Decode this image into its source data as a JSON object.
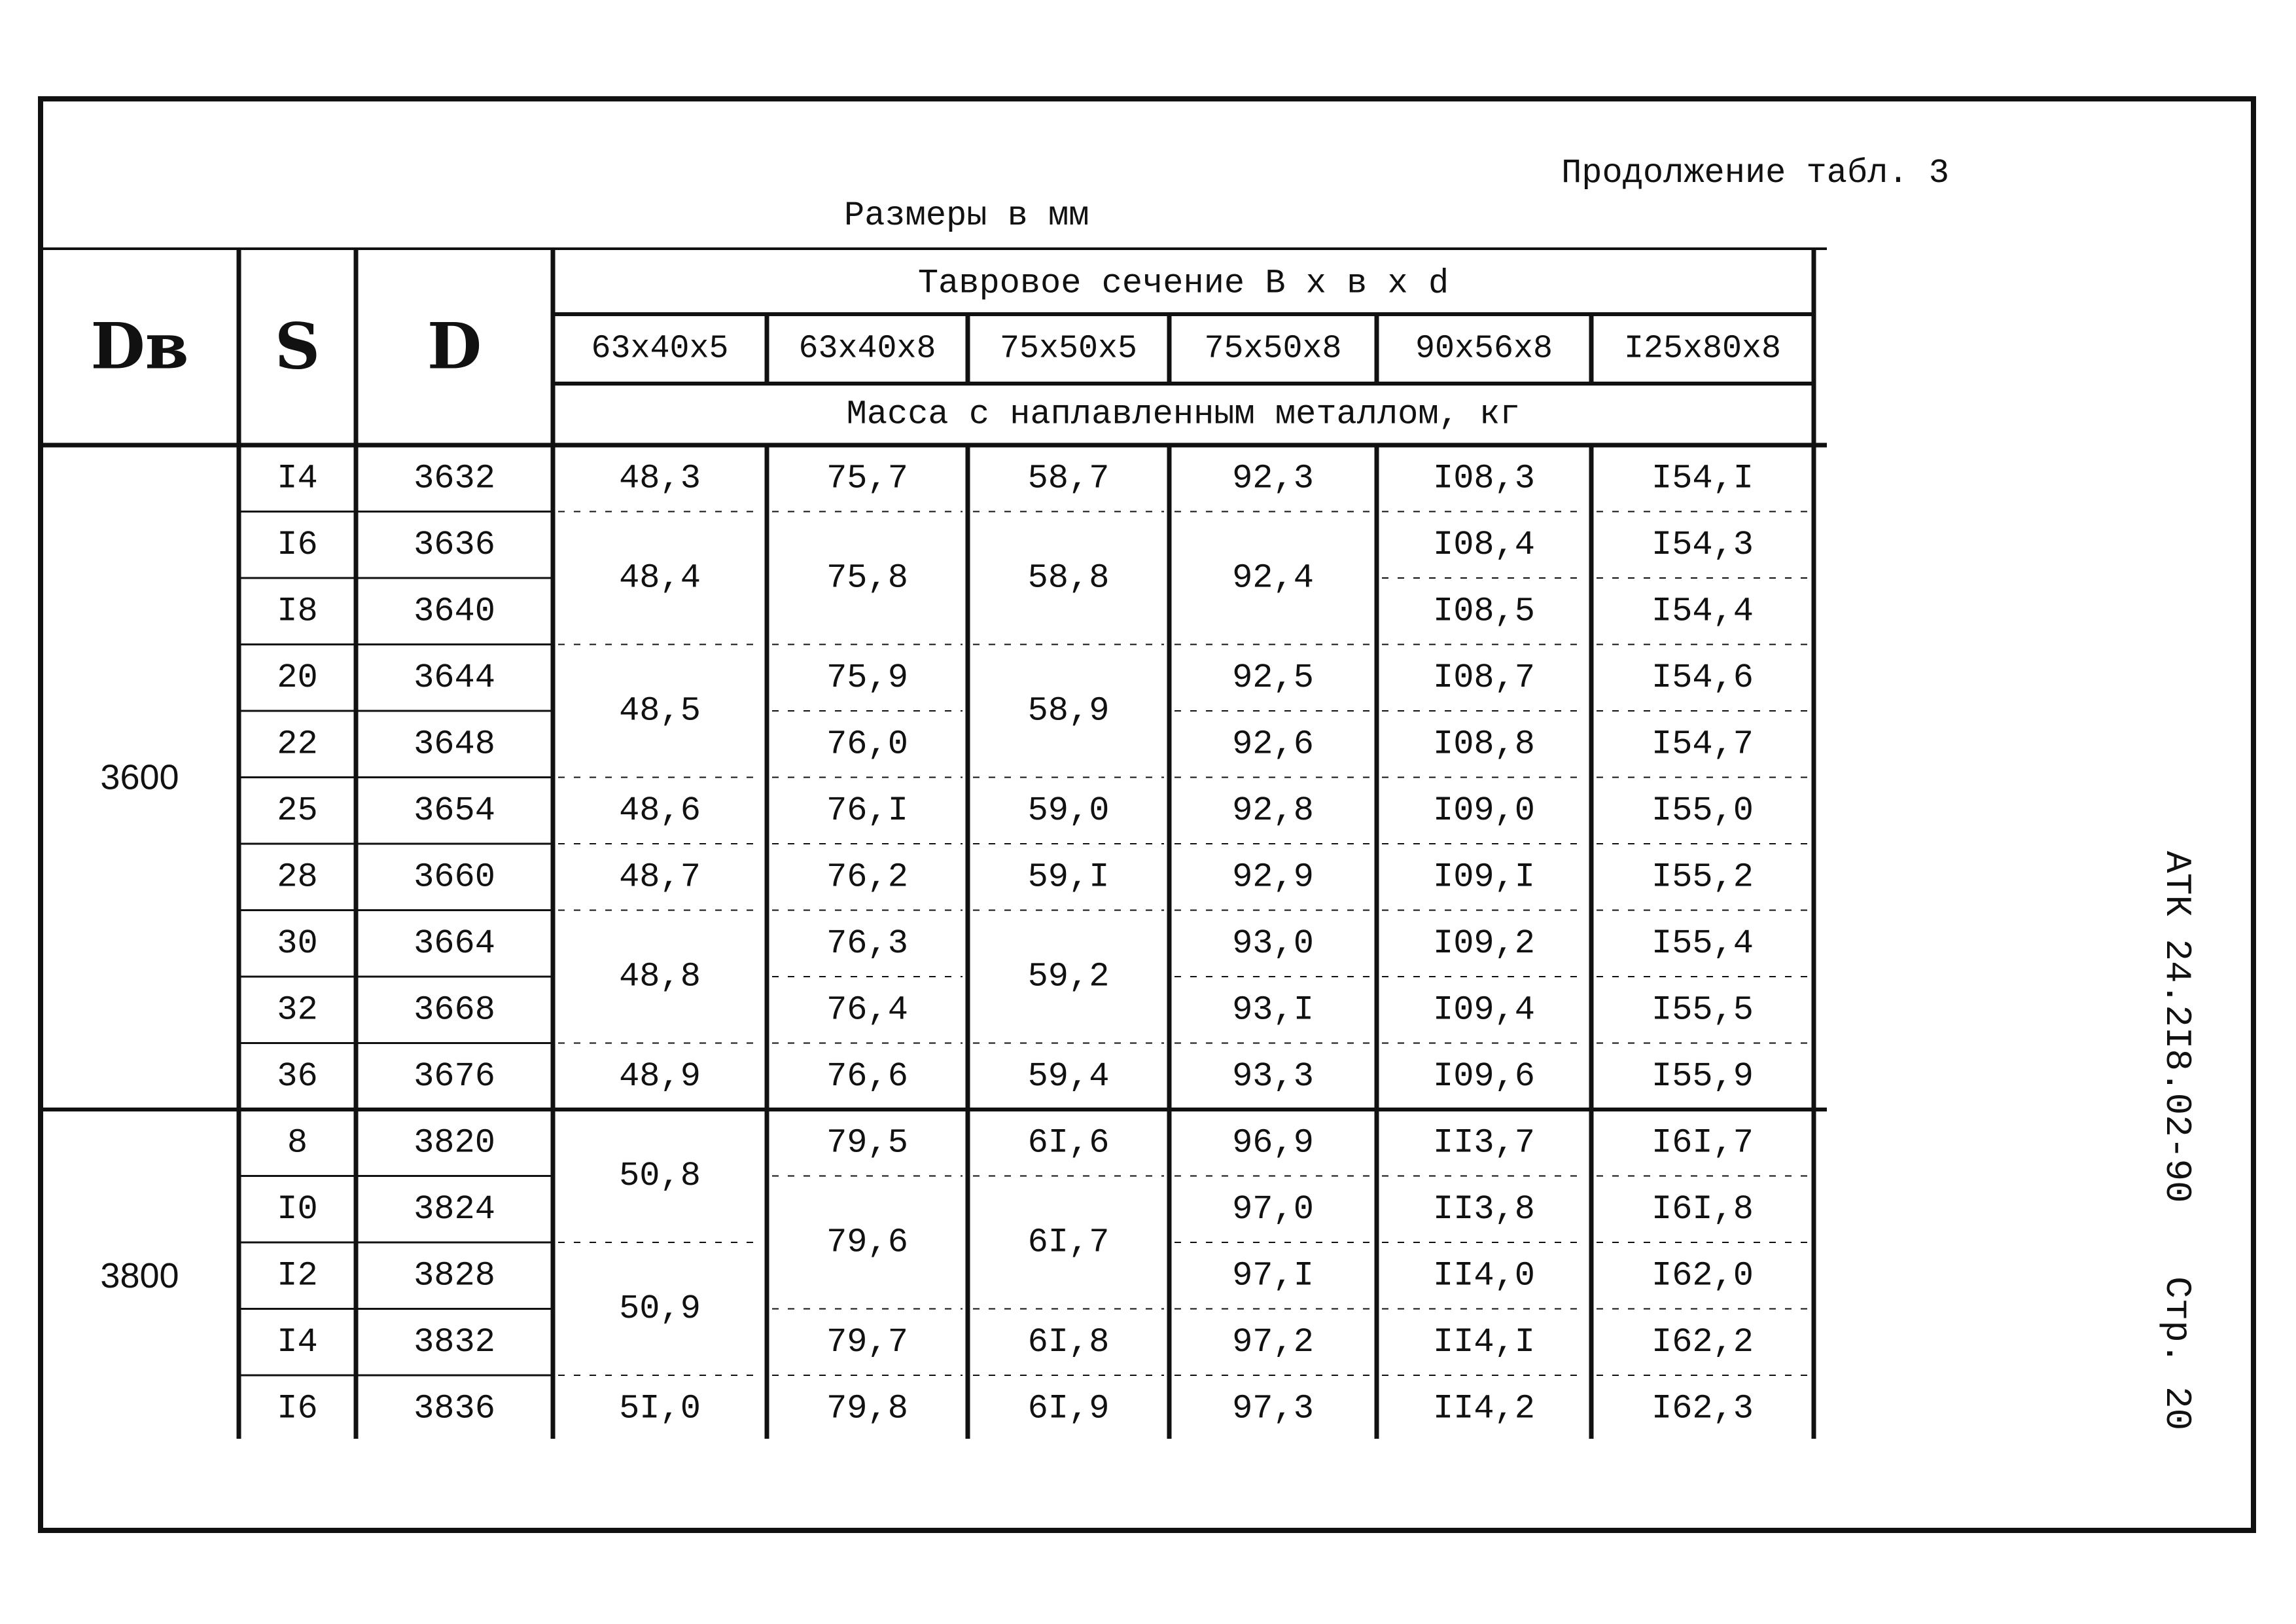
{
  "caption": {
    "continuation": "Продолжение табл. 3",
    "units": "Размеры в мм"
  },
  "side_note": {
    "code": "АТК 24.2I8.02-90",
    "page": "Стр. 20"
  },
  "table": {
    "headers": {
      "db": "Dв",
      "s": "S",
      "d": "D",
      "section_title": "Тавровое сечение  B x в x d",
      "mass_title": "Масса с наплавленным металлом, кг"
    },
    "profiles": [
      "63x40x5",
      "63x40x8",
      "75x50x5",
      "75x50x8",
      "90x56x8",
      "I25x80x8"
    ],
    "groups": [
      {
        "db": "3600",
        "rows": [
          {
            "s": "I4",
            "d": "3632"
          },
          {
            "s": "I6",
            "d": "3636"
          },
          {
            "s": "I8",
            "d": "3640"
          },
          {
            "s": "20",
            "d": "3644"
          },
          {
            "s": "22",
            "d": "3648"
          },
          {
            "s": "25",
            "d": "3654"
          },
          {
            "s": "28",
            "d": "3660"
          },
          {
            "s": "30",
            "d": "3664"
          },
          {
            "s": "32",
            "d": "3668"
          },
          {
            "s": "36",
            "d": "3676"
          }
        ],
        "mass": [
          [
            {
              "v": "48,3",
              "span": 1
            },
            {
              "v": "48,4",
              "span": 2
            },
            {
              "v": "48,5",
              "span": 2
            },
            {
              "v": "48,6",
              "span": 1
            },
            {
              "v": "48,7",
              "span": 1
            },
            {
              "v": "48,8",
              "span": 2
            },
            {
              "v": "48,9",
              "span": 1
            }
          ],
          [
            {
              "v": "75,7",
              "span": 1
            },
            {
              "v": "75,8",
              "span": 2
            },
            {
              "v": "75,9",
              "span": 1
            },
            {
              "v": "76,0",
              "span": 1
            },
            {
              "v": "76,I",
              "span": 1
            },
            {
              "v": "76,2",
              "span": 1
            },
            {
              "v": "76,3",
              "span": 1
            },
            {
              "v": "76,4",
              "span": 1
            },
            {
              "v": "76,6",
              "span": 1
            }
          ],
          [
            {
              "v": "58,7",
              "span": 1
            },
            {
              "v": "58,8",
              "span": 2
            },
            {
              "v": "58,9",
              "span": 2
            },
            {
              "v": "59,0",
              "span": 1
            },
            {
              "v": "59,I",
              "span": 1
            },
            {
              "v": "59,2",
              "span": 2
            },
            {
              "v": "59,4",
              "span": 1
            }
          ],
          [
            {
              "v": "92,3",
              "span": 1
            },
            {
              "v": "92,4",
              "span": 2
            },
            {
              "v": "92,5",
              "span": 1
            },
            {
              "v": "92,6",
              "span": 1
            },
            {
              "v": "92,8",
              "span": 1
            },
            {
              "v": "92,9",
              "span": 1
            },
            {
              "v": "93,0",
              "span": 1
            },
            {
              "v": "93,I",
              "span": 1
            },
            {
              "v": "93,3",
              "span": 1
            }
          ],
          [
            {
              "v": "I08,3",
              "span": 1
            },
            {
              "v": "I08,4",
              "span": 1
            },
            {
              "v": "I08,5",
              "span": 1
            },
            {
              "v": "I08,7",
              "span": 1
            },
            {
              "v": "I08,8",
              "span": 1
            },
            {
              "v": "I09,0",
              "span": 1
            },
            {
              "v": "I09,I",
              "span": 1
            },
            {
              "v": "I09,2",
              "span": 1
            },
            {
              "v": "I09,4",
              "span": 1
            },
            {
              "v": "I09,6",
              "span": 1
            }
          ],
          [
            {
              "v": "I54,I",
              "span": 1
            },
            {
              "v": "I54,3",
              "span": 1
            },
            {
              "v": "I54,4",
              "span": 1
            },
            {
              "v": "I54,6",
              "span": 1
            },
            {
              "v": "I54,7",
              "span": 1
            },
            {
              "v": "I55,0",
              "span": 1
            },
            {
              "v": "I55,2",
              "span": 1
            },
            {
              "v": "I55,4",
              "span": 1
            },
            {
              "v": "I55,5",
              "span": 1
            },
            {
              "v": "I55,9",
              "span": 1
            }
          ]
        ]
      },
      {
        "db": "3800",
        "rows": [
          {
            "s": "8",
            "d": "3820"
          },
          {
            "s": "I0",
            "d": "3824"
          },
          {
            "s": "I2",
            "d": "3828"
          },
          {
            "s": "I4",
            "d": "3832"
          },
          {
            "s": "I6",
            "d": "3836"
          }
        ],
        "mass": [
          [
            {
              "v": "50,8",
              "span": 2
            },
            {
              "v": "50,9",
              "span": 2
            },
            {
              "v": "5I,0",
              "span": 1
            }
          ],
          [
            {
              "v": "79,5",
              "span": 1
            },
            {
              "v": "79,6",
              "span": 2
            },
            {
              "v": "79,7",
              "span": 1
            },
            {
              "v": "79,8",
              "span": 1
            }
          ],
          [
            {
              "v": "6I,6",
              "span": 1
            },
            {
              "v": "6I,7",
              "span": 2
            },
            {
              "v": "6I,8",
              "span": 1
            },
            {
              "v": "6I,9",
              "span": 1
            }
          ],
          [
            {
              "v": "96,9",
              "span": 1
            },
            {
              "v": "97,0",
              "span": 1
            },
            {
              "v": "97,I",
              "span": 1
            },
            {
              "v": "97,2",
              "span": 1
            },
            {
              "v": "97,3",
              "span": 1
            }
          ],
          [
            {
              "v": "II3,7",
              "span": 1
            },
            {
              "v": "II3,8",
              "span": 1
            },
            {
              "v": "II4,0",
              "span": 1
            },
            {
              "v": "II4,I",
              "span": 1
            },
            {
              "v": "II4,2",
              "span": 1
            }
          ],
          [
            {
              "v": "I6I,7",
              "span": 1
            },
            {
              "v": "I6I,8",
              "span": 1
            },
            {
              "v": "I62,0",
              "span": 1
            },
            {
              "v": "I62,2",
              "span": 1
            },
            {
              "v": "I62,3",
              "span": 1
            }
          ]
        ]
      }
    ]
  }
}
